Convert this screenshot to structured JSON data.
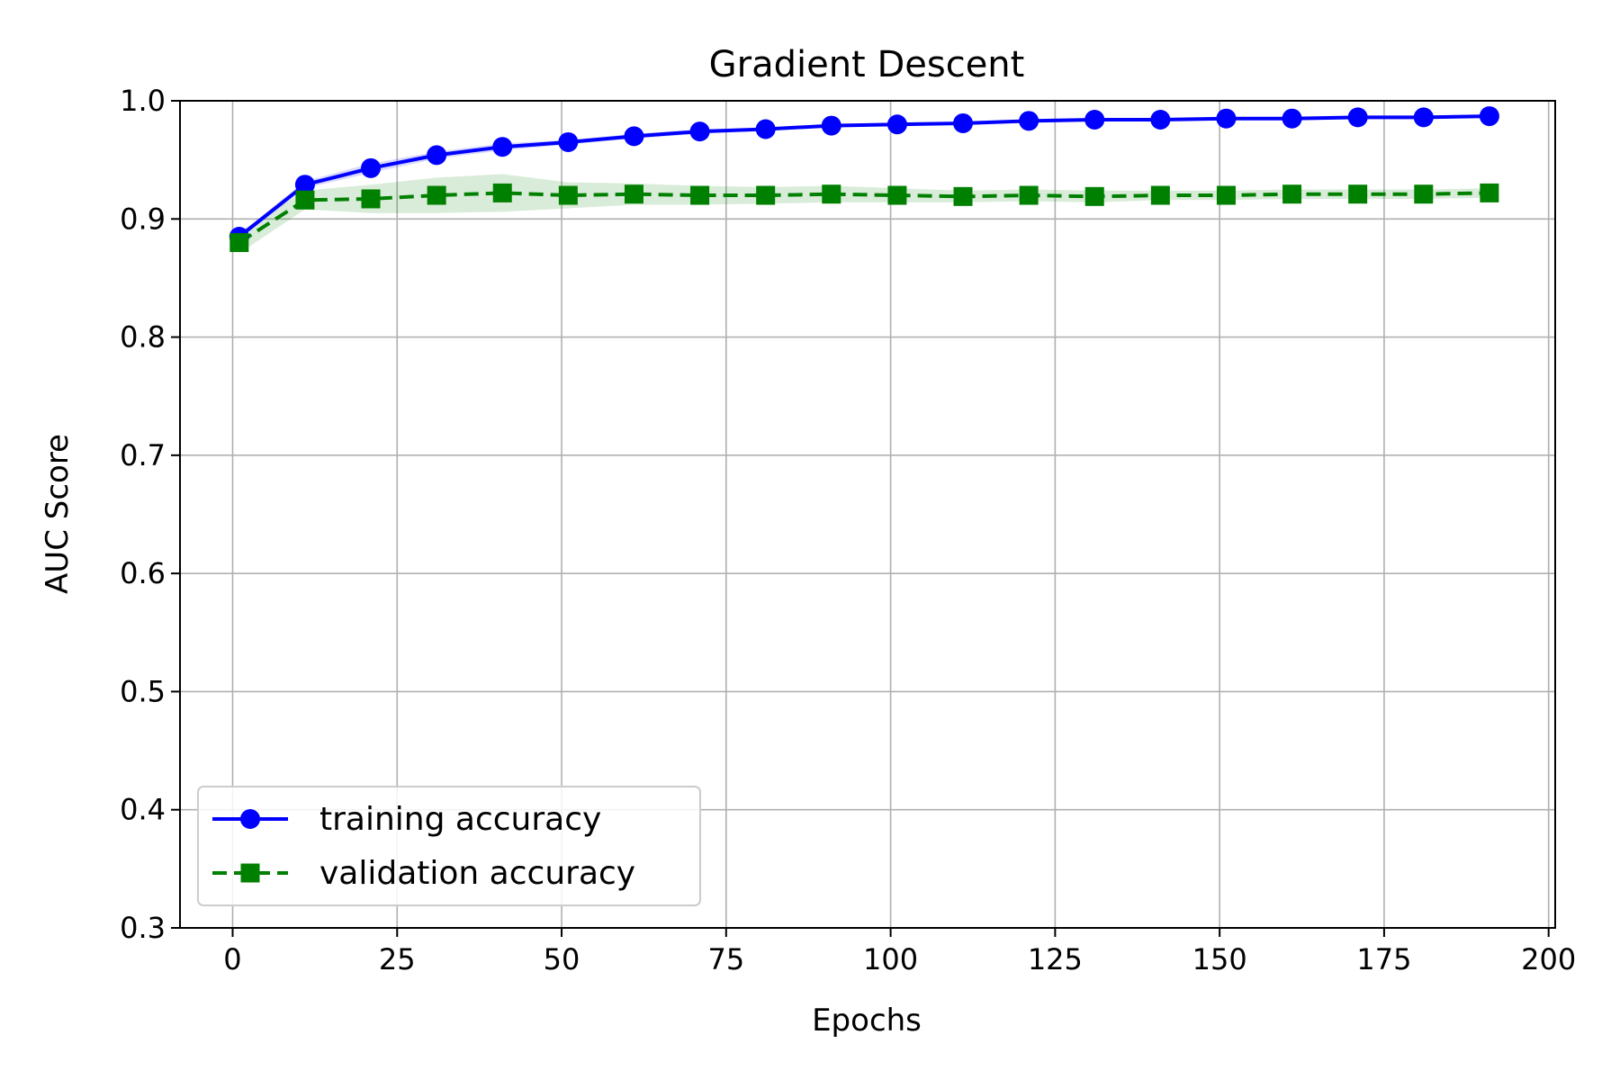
{
  "chart_data": {
    "type": "line",
    "title": "Gradient Descent",
    "xlabel": "Epochs",
    "ylabel": "AUC Score",
    "xlim": [
      -8,
      201
    ],
    "ylim": [
      0.3,
      1.0
    ],
    "x_ticks": [
      0,
      25,
      50,
      75,
      100,
      125,
      150,
      175,
      200
    ],
    "y_ticks": [
      0.3,
      0.4,
      0.5,
      0.6,
      0.7,
      0.8,
      0.9,
      1.0
    ],
    "grid": true,
    "legend_position": "lower-left",
    "x": [
      1,
      11,
      21,
      31,
      41,
      51,
      61,
      71,
      81,
      91,
      101,
      111,
      121,
      131,
      141,
      151,
      161,
      171,
      181,
      191
    ],
    "series": [
      {
        "name": "training accuracy",
        "color": "#0000ff",
        "line_style": "solid",
        "marker": "circle",
        "values": [
          0.885,
          0.929,
          0.943,
          0.954,
          0.961,
          0.965,
          0.97,
          0.974,
          0.976,
          0.979,
          0.98,
          0.981,
          0.983,
          0.984,
          0.984,
          0.985,
          0.985,
          0.986,
          0.986,
          0.987
        ],
        "band_lower": [
          0.883,
          0.926,
          0.939,
          0.951,
          0.958,
          0.963,
          0.968,
          0.972,
          0.975,
          0.978,
          0.979,
          0.98,
          0.982,
          0.983,
          0.983,
          0.984,
          0.984,
          0.985,
          0.985,
          0.986
        ],
        "band_upper": [
          0.887,
          0.932,
          0.947,
          0.957,
          0.964,
          0.967,
          0.972,
          0.976,
          0.977,
          0.98,
          0.981,
          0.982,
          0.984,
          0.985,
          0.985,
          0.986,
          0.986,
          0.987,
          0.987,
          0.988
        ]
      },
      {
        "name": "validation accuracy",
        "color": "#008000",
        "line_style": "dashed",
        "marker": "square",
        "values": [
          0.88,
          0.916,
          0.917,
          0.92,
          0.922,
          0.92,
          0.921,
          0.92,
          0.92,
          0.921,
          0.92,
          0.919,
          0.92,
          0.919,
          0.92,
          0.92,
          0.921,
          0.921,
          0.921,
          0.922
        ],
        "band_lower": [
          0.871,
          0.908,
          0.905,
          0.905,
          0.906,
          0.909,
          0.912,
          0.912,
          0.913,
          0.914,
          0.914,
          0.914,
          0.915,
          0.914,
          0.916,
          0.916,
          0.917,
          0.917,
          0.917,
          0.918
        ],
        "band_upper": [
          0.889,
          0.924,
          0.929,
          0.935,
          0.938,
          0.931,
          0.93,
          0.928,
          0.927,
          0.928,
          0.926,
          0.924,
          0.925,
          0.924,
          0.924,
          0.924,
          0.925,
          0.925,
          0.925,
          0.926
        ]
      }
    ]
  }
}
